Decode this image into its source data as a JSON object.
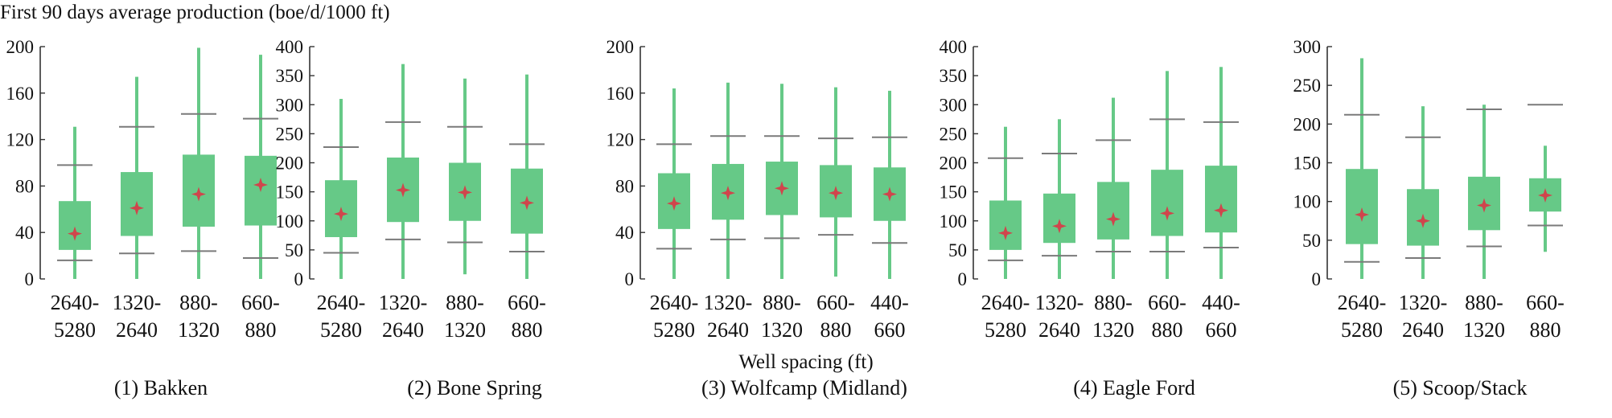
{
  "figure": {
    "ylabel": "First 90 days average production (boe/d/1000 ft)",
    "xlabel": "Well spacing (ft)"
  },
  "colors": {
    "box": "#66c987",
    "whisker": "#66c987",
    "mean_marker": "#d0454c",
    "percentile_line": "#7a7a7a",
    "axis": "#333333"
  },
  "chart_data": [
    {
      "type": "box",
      "title": "(1) Bakken",
      "ylim": [
        0,
        200
      ],
      "yticks": [
        0,
        40,
        80,
        120,
        160,
        200
      ],
      "categories": [
        [
          "2640-",
          "5280"
        ],
        [
          "1320-",
          "2640"
        ],
        [
          "880-",
          "1320"
        ],
        [
          "660-",
          "880"
        ]
      ],
      "boxes": [
        {
          "min": 0,
          "q1": 25,
          "q3": 67,
          "max": 131,
          "mean": 39,
          "p_low": 16,
          "p_high": 98
        },
        {
          "min": 0,
          "q1": 37,
          "q3": 92,
          "max": 174,
          "mean": 61,
          "p_low": 22,
          "p_high": 131
        },
        {
          "min": 0,
          "q1": 45,
          "q3": 107,
          "max": 199,
          "mean": 73,
          "p_low": 24,
          "p_high": 142
        },
        {
          "min": 0,
          "q1": 46,
          "q3": 106,
          "max": 193,
          "mean": 81,
          "p_low": 18,
          "p_high": 138
        }
      ]
    },
    {
      "type": "box",
      "title": "(2) Bone Spring",
      "ylim": [
        0,
        400
      ],
      "yticks": [
        0,
        50,
        100,
        150,
        200,
        250,
        300,
        350,
        400
      ],
      "categories": [
        [
          "2640-",
          "5280"
        ],
        [
          "1320-",
          "2640"
        ],
        [
          "880-",
          "1320"
        ],
        [
          "660-",
          "880"
        ]
      ],
      "boxes": [
        {
          "min": 0,
          "q1": 72,
          "q3": 170,
          "max": 310,
          "mean": 112,
          "p_low": 45,
          "p_high": 227
        },
        {
          "min": 0,
          "q1": 98,
          "q3": 209,
          "max": 370,
          "mean": 153,
          "p_low": 68,
          "p_high": 270
        },
        {
          "min": 8,
          "q1": 100,
          "q3": 200,
          "max": 345,
          "mean": 149,
          "p_low": 63,
          "p_high": 262
        },
        {
          "min": 0,
          "q1": 78,
          "q3": 190,
          "max": 352,
          "mean": 131,
          "p_low": 47,
          "p_high": 232
        }
      ]
    },
    {
      "type": "box",
      "title": "(3) Wolfcamp (Midland)",
      "ylim": [
        0,
        200
      ],
      "yticks": [
        0,
        40,
        80,
        120,
        160,
        200
      ],
      "categories": [
        [
          "2640-",
          "5280"
        ],
        [
          "1320-",
          "2640"
        ],
        [
          "880-",
          "1320"
        ],
        [
          "660-",
          "880"
        ],
        [
          "440-",
          "660"
        ]
      ],
      "boxes": [
        {
          "min": 0,
          "q1": 43,
          "q3": 91,
          "max": 164,
          "mean": 65,
          "p_low": 26,
          "p_high": 116
        },
        {
          "min": 0,
          "q1": 51,
          "q3": 99,
          "max": 169,
          "mean": 74,
          "p_low": 34,
          "p_high": 123
        },
        {
          "min": 0,
          "q1": 55,
          "q3": 101,
          "max": 168,
          "mean": 78,
          "p_low": 35,
          "p_high": 123
        },
        {
          "min": 2,
          "q1": 53,
          "q3": 98,
          "max": 165,
          "mean": 74,
          "p_low": 38,
          "p_high": 121
        },
        {
          "min": 0,
          "q1": 50,
          "q3": 96,
          "max": 162,
          "mean": 73,
          "p_low": 31,
          "p_high": 122
        }
      ]
    },
    {
      "type": "box",
      "title": "(4) Eagle Ford",
      "ylim": [
        0,
        400
      ],
      "yticks": [
        0,
        50,
        100,
        150,
        200,
        250,
        300,
        350,
        400
      ],
      "categories": [
        [
          "2640-",
          "5280"
        ],
        [
          "1320-",
          "2640"
        ],
        [
          "880-",
          "1320"
        ],
        [
          "660-",
          "880"
        ],
        [
          "440-",
          "660"
        ]
      ],
      "boxes": [
        {
          "min": 0,
          "q1": 50,
          "q3": 135,
          "max": 262,
          "mean": 79,
          "p_low": 32,
          "p_high": 208
        },
        {
          "min": 0,
          "q1": 62,
          "q3": 147,
          "max": 275,
          "mean": 91,
          "p_low": 40,
          "p_high": 216
        },
        {
          "min": 0,
          "q1": 68,
          "q3": 167,
          "max": 312,
          "mean": 103,
          "p_low": 47,
          "p_high": 239
        },
        {
          "min": 0,
          "q1": 74,
          "q3": 188,
          "max": 358,
          "mean": 113,
          "p_low": 47,
          "p_high": 275
        },
        {
          "min": 0,
          "q1": 80,
          "q3": 195,
          "max": 365,
          "mean": 118,
          "p_low": 54,
          "p_high": 270
        }
      ]
    },
    {
      "type": "box",
      "title": "(5) Scoop/Stack",
      "ylim": [
        0,
        300
      ],
      "yticks": [
        0,
        50,
        100,
        150,
        200,
        250,
        300
      ],
      "categories": [
        [
          "2640-",
          "5280"
        ],
        [
          "1320-",
          "2640"
        ],
        [
          "880-",
          "1320"
        ],
        [
          "660-",
          "880"
        ]
      ],
      "boxes": [
        {
          "min": 0,
          "q1": 45,
          "q3": 142,
          "max": 285,
          "mean": 83,
          "p_low": 22,
          "p_high": 212
        },
        {
          "min": 0,
          "q1": 43,
          "q3": 116,
          "max": 223,
          "mean": 75,
          "p_low": 27,
          "p_high": 183
        },
        {
          "min": 0,
          "q1": 63,
          "q3": 132,
          "max": 225,
          "mean": 95,
          "p_low": 42,
          "p_high": 219
        },
        {
          "min": 35,
          "q1": 87,
          "q3": 130,
          "max": 172,
          "mean": 108,
          "p_low": 69,
          "p_high": 225
        }
      ]
    }
  ]
}
